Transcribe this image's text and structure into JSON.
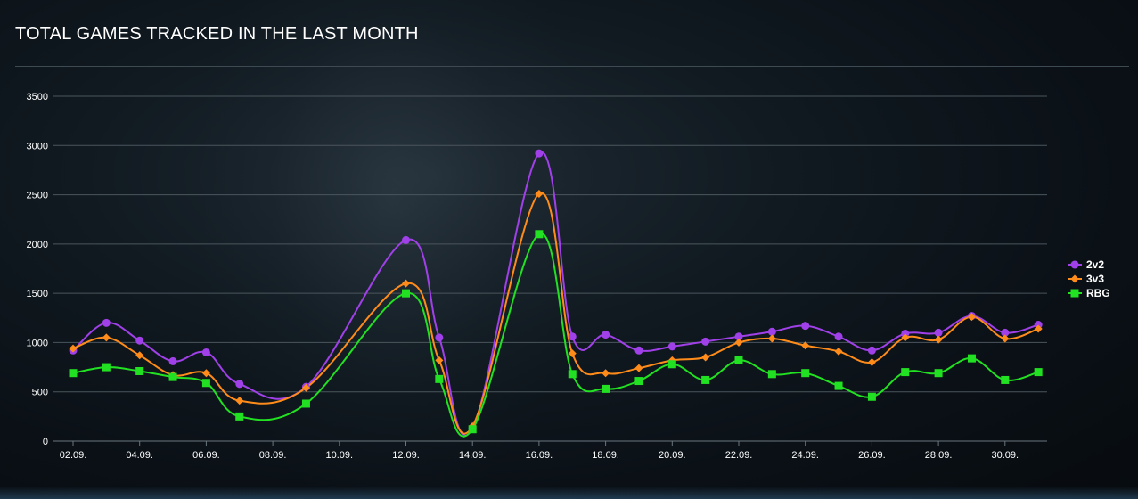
{
  "page": {
    "title": "TOTAL GAMES TRACKED IN THE LAST MONTH"
  },
  "chart_data": {
    "type": "line",
    "title": "TOTAL GAMES TRACKED IN THE LAST MONTH",
    "xlabel": "",
    "ylabel": "",
    "ylim": [
      0,
      3500
    ],
    "y_ticks": [
      0,
      500,
      1000,
      1500,
      2000,
      2500,
      3000,
      3500
    ],
    "x": [
      "02.09.",
      "03.09.",
      "04.09.",
      "05.09.",
      "06.09.",
      "07.09.",
      "08.09.",
      "09.09.",
      "10.09.",
      "11.09.",
      "12.09.",
      "13.09.",
      "14.09.",
      "15.09.",
      "16.09.",
      "17.09.",
      "18.09.",
      "19.09.",
      "20.09.",
      "21.09.",
      "22.09.",
      "23.09.",
      "24.09.",
      "25.09.",
      "26.09.",
      "27.09.",
      "28.09.",
      "29.09.",
      "30.09.",
      "01.10."
    ],
    "x_tick_labels": [
      "02.09.",
      "04.09.",
      "06.09.",
      "08.09.",
      "10.09.",
      "12.09.",
      "14.09.",
      "16.09.",
      "18.09.",
      "20.09.",
      "22.09.",
      "24.09.",
      "26.09.",
      "28.09.",
      "30.09."
    ],
    "grid": true,
    "legend": "right",
    "series": [
      {
        "name": "2v2",
        "color": "#a040e8",
        "marker": "circle",
        "values": [
          {
            "x": "02.09.",
            "y": 920
          },
          {
            "x": "03.09.",
            "y": 1200
          },
          {
            "x": "04.09.",
            "y": 1020
          },
          {
            "x": "05.09.",
            "y": 810
          },
          {
            "x": "06.09.",
            "y": 900
          },
          {
            "x": "07.09.",
            "y": 580
          },
          {
            "x": "09.09.",
            "y": 550
          },
          {
            "x": "12.09.",
            "y": 2040
          },
          {
            "x": "13.09.",
            "y": 1050
          },
          {
            "x": "14.09.",
            "y": 130
          },
          {
            "x": "16.09.",
            "y": 2920
          },
          {
            "x": "17.09.",
            "y": 1060
          },
          {
            "x": "18.09.",
            "y": 1080
          },
          {
            "x": "19.09.",
            "y": 920
          },
          {
            "x": "20.09.",
            "y": 960
          },
          {
            "x": "21.09.",
            "y": 1010
          },
          {
            "x": "22.09.",
            "y": 1060
          },
          {
            "x": "23.09.",
            "y": 1110
          },
          {
            "x": "24.09.",
            "y": 1170
          },
          {
            "x": "25.09.",
            "y": 1060
          },
          {
            "x": "26.09.",
            "y": 920
          },
          {
            "x": "27.09.",
            "y": 1090
          },
          {
            "x": "28.09.",
            "y": 1100
          },
          {
            "x": "29.09.",
            "y": 1270
          },
          {
            "x": "30.09.",
            "y": 1100
          },
          {
            "x": "01.10.",
            "y": 1180
          }
        ]
      },
      {
        "name": "3v3",
        "color": "#ff8c1a",
        "marker": "diamond",
        "values": [
          {
            "x": "02.09.",
            "y": 940
          },
          {
            "x": "03.09.",
            "y": 1050
          },
          {
            "x": "04.09.",
            "y": 870
          },
          {
            "x": "05.09.",
            "y": 670
          },
          {
            "x": "06.09.",
            "y": 690
          },
          {
            "x": "07.09.",
            "y": 410
          },
          {
            "x": "09.09.",
            "y": 540
          },
          {
            "x": "12.09.",
            "y": 1600
          },
          {
            "x": "13.09.",
            "y": 820
          },
          {
            "x": "14.09.",
            "y": 150
          },
          {
            "x": "16.09.",
            "y": 2510
          },
          {
            "x": "17.09.",
            "y": 890
          },
          {
            "x": "18.09.",
            "y": 690
          },
          {
            "x": "19.09.",
            "y": 740
          },
          {
            "x": "20.09.",
            "y": 820
          },
          {
            "x": "21.09.",
            "y": 850
          },
          {
            "x": "22.09.",
            "y": 1000
          },
          {
            "x": "23.09.",
            "y": 1040
          },
          {
            "x": "24.09.",
            "y": 970
          },
          {
            "x": "25.09.",
            "y": 910
          },
          {
            "x": "26.09.",
            "y": 800
          },
          {
            "x": "27.09.",
            "y": 1050
          },
          {
            "x": "28.09.",
            "y": 1030
          },
          {
            "x": "29.09.",
            "y": 1260
          },
          {
            "x": "30.09.",
            "y": 1040
          },
          {
            "x": "01.10.",
            "y": 1140
          }
        ]
      },
      {
        "name": "RBG",
        "color": "#22e022",
        "marker": "square",
        "values": [
          {
            "x": "02.09.",
            "y": 690
          },
          {
            "x": "03.09.",
            "y": 750
          },
          {
            "x": "04.09.",
            "y": 710
          },
          {
            "x": "05.09.",
            "y": 650
          },
          {
            "x": "06.09.",
            "y": 590
          },
          {
            "x": "07.09.",
            "y": 250
          },
          {
            "x": "09.09.",
            "y": 380
          },
          {
            "x": "12.09.",
            "y": 1500
          },
          {
            "x": "13.09.",
            "y": 630
          },
          {
            "x": "14.09.",
            "y": 120
          },
          {
            "x": "16.09.",
            "y": 2100
          },
          {
            "x": "17.09.",
            "y": 680
          },
          {
            "x": "18.09.",
            "y": 530
          },
          {
            "x": "19.09.",
            "y": 610
          },
          {
            "x": "20.09.",
            "y": 780
          },
          {
            "x": "21.09.",
            "y": 620
          },
          {
            "x": "22.09.",
            "y": 820
          },
          {
            "x": "23.09.",
            "y": 680
          },
          {
            "x": "24.09.",
            "y": 690
          },
          {
            "x": "25.09.",
            "y": 560
          },
          {
            "x": "26.09.",
            "y": 450
          },
          {
            "x": "27.09.",
            "y": 700
          },
          {
            "x": "28.09.",
            "y": 690
          },
          {
            "x": "29.09.",
            "y": 840
          },
          {
            "x": "30.09.",
            "y": 620
          },
          {
            "x": "01.10.",
            "y": 700
          }
        ]
      }
    ]
  }
}
